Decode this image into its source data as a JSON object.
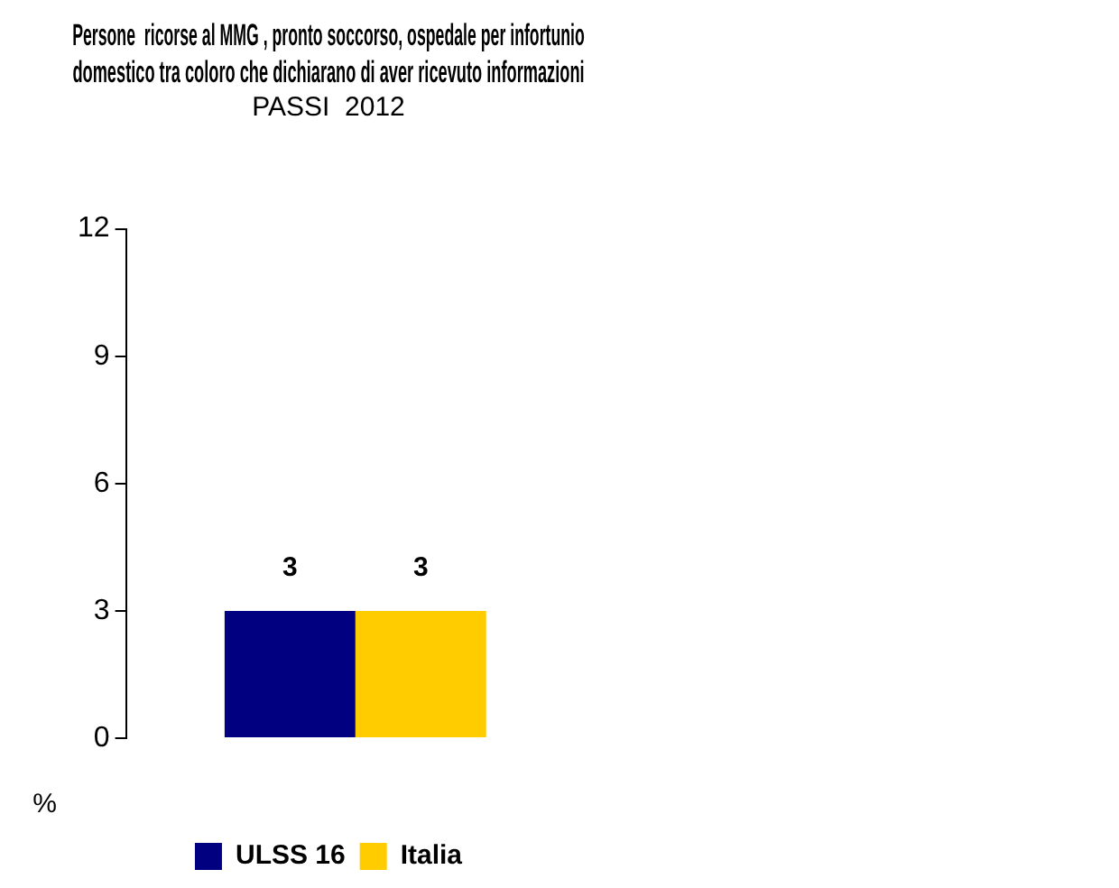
{
  "chart_data": {
    "type": "bar",
    "title": "Persone  ricorse al MMG , pronto soccorso, ospedale per infortunio domestico tra coloro che dichiarano di aver ricevuto informazioni",
    "subtitle": "PASSI  2012",
    "ylabel": "%",
    "categories": [
      null
    ],
    "series": [
      {
        "name": "ULSS 16",
        "color": "#000080",
        "values": [
          3
        ]
      },
      {
        "name": "Italia",
        "color": "#ffcc00",
        "values": [
          3
        ]
      }
    ],
    "ylim": [
      0,
      12
    ],
    "yticks": [
      0,
      3,
      6,
      9,
      12
    ],
    "grid": false,
    "legend": "bottom",
    "data_labels": true
  }
}
